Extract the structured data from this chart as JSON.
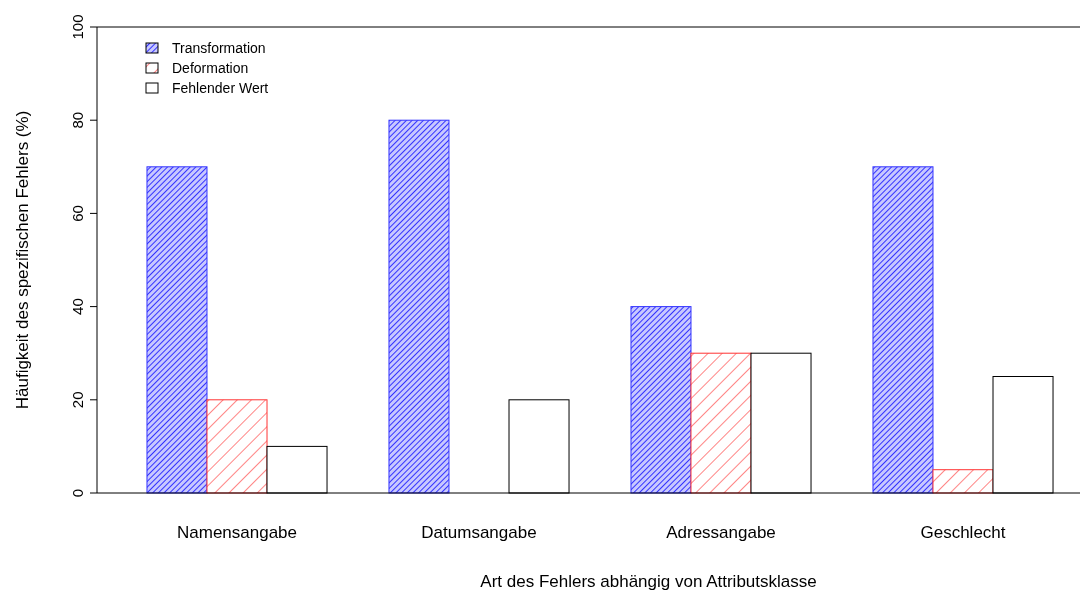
{
  "chart_data": {
    "type": "bar",
    "xlabel": "Art des Fehlers abhängig von Attributsklasse",
    "ylabel": "Häufigkeit des spezifischen Fehlers (%)",
    "categories": [
      "Namensangabe",
      "Datumsangabe",
      "Adressangabe",
      "Geschlecht"
    ],
    "series": [
      {
        "name": "Transformation",
        "color": "#3333ff",
        "values": [
          70,
          80,
          40,
          70
        ]
      },
      {
        "name": "Deformation",
        "color": "#ff3333",
        "values": [
          20,
          0,
          30,
          5
        ]
      },
      {
        "name": "Fehlender Wert",
        "color": "#ffffff",
        "values": [
          10,
          20,
          30,
          25
        ]
      }
    ],
    "ylim": [
      0,
      100
    ],
    "yticks": [
      0,
      20,
      40,
      60,
      80,
      100
    ],
    "legend": "top left",
    "grid": false
  }
}
